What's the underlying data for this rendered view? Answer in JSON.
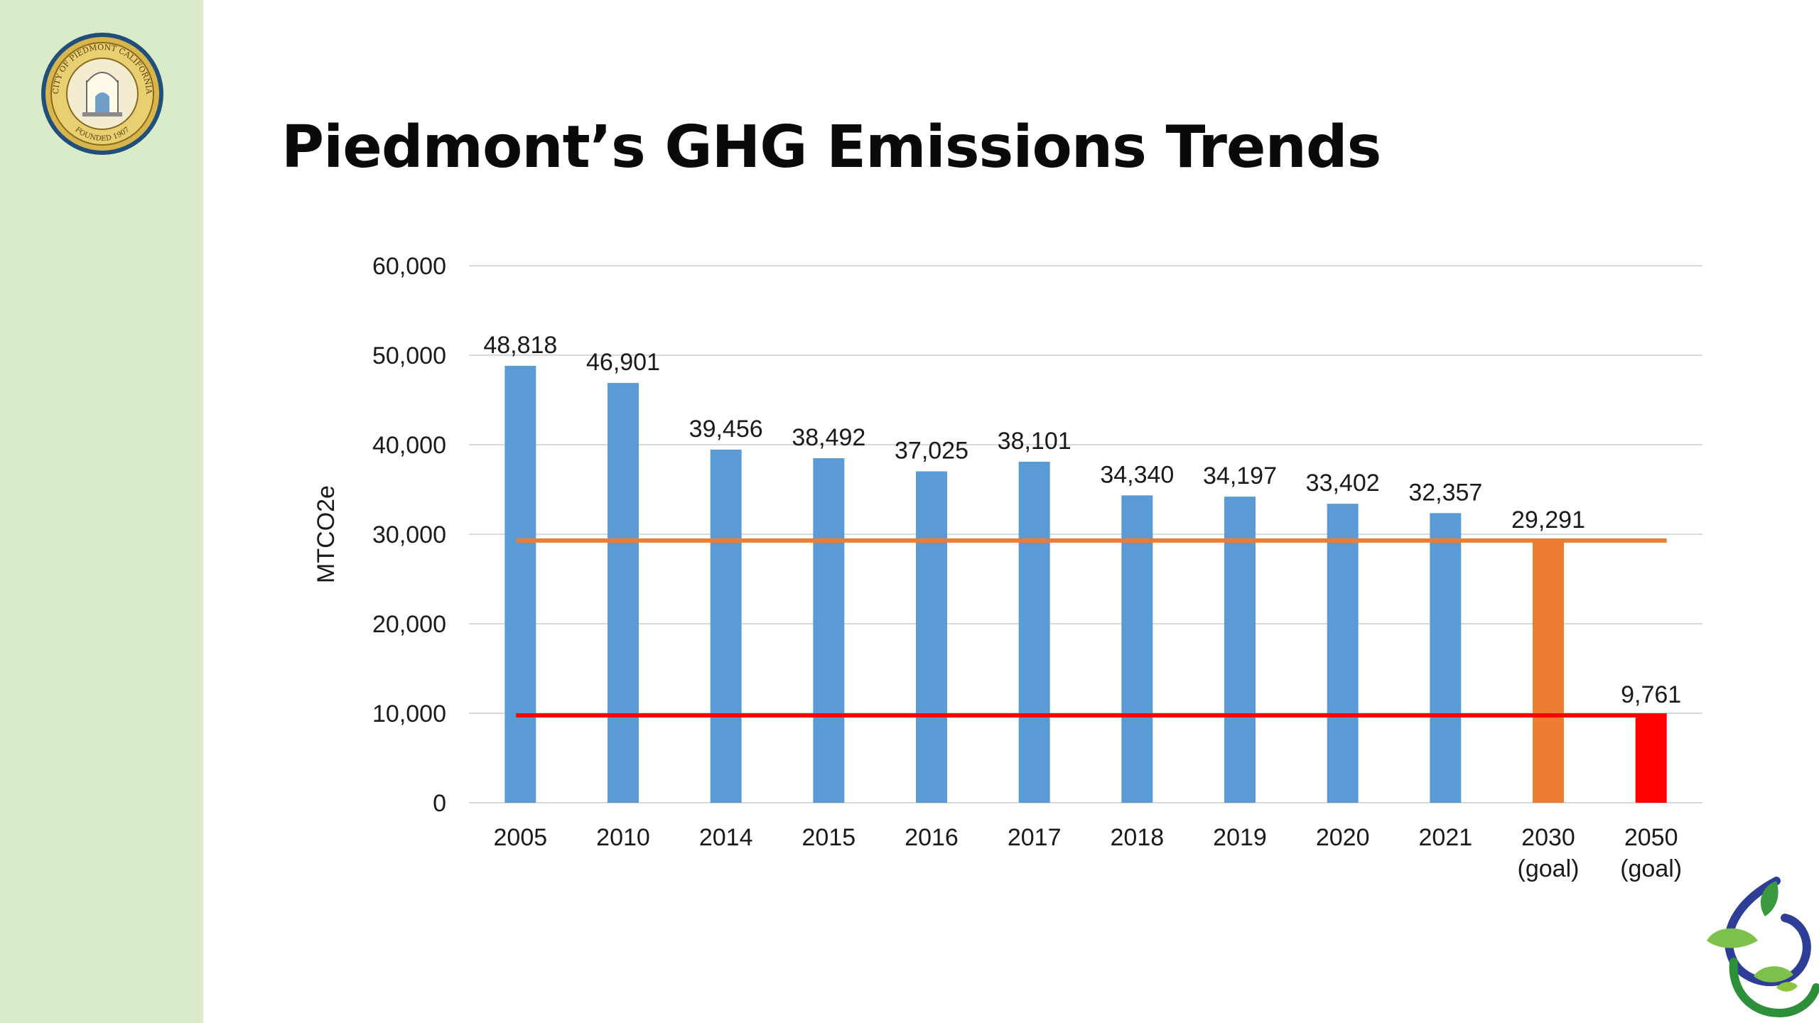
{
  "page": {
    "title": "Piedmont’s GHG Emissions Trends",
    "seal_text": [
      "CITY OF PIEDMONT CALIFORNIA",
      "FOUNDED 1907"
    ],
    "colors": {
      "sidebar": "#d9ebc8",
      "actual": "#5b9bd5",
      "goal_2030": "#ed7d31",
      "goal_2050": "#ff0000",
      "gridline": "#d9d9d9"
    },
    "icons": [
      "city-seal-icon",
      "sprout-logo-icon"
    ]
  },
  "chart_data": {
    "type": "bar",
    "title": "Piedmont’s GHG Emissions Trends",
    "ylabel": "MTCO2e",
    "xlabel": "",
    "ylim": [
      0,
      60000
    ],
    "yticks": [
      0,
      10000,
      20000,
      30000,
      40000,
      50000,
      60000
    ],
    "ytick_labels": [
      "0",
      "10,000",
      "20,000",
      "30,000",
      "40,000",
      "50,000",
      "60,000"
    ],
    "grid": true,
    "legend": "none",
    "categories": [
      "2005",
      "2010",
      "2014",
      "2015",
      "2016",
      "2017",
      "2018",
      "2019",
      "2020",
      "2021",
      "2030\n(goal)",
      "2050\n(goal)"
    ],
    "values": [
      48818,
      46901,
      39456,
      38492,
      37025,
      38101,
      34340,
      34197,
      33402,
      32357,
      29291,
      9761
    ],
    "data_labels": [
      "48,818",
      "46,901",
      "39,456",
      "38,492",
      "37,025",
      "38,101",
      "34,340",
      "34,197",
      "33,402",
      "32,357",
      "29,291",
      "9,761"
    ],
    "bar_colors": [
      "#5b9bd5",
      "#5b9bd5",
      "#5b9bd5",
      "#5b9bd5",
      "#5b9bd5",
      "#5b9bd5",
      "#5b9bd5",
      "#5b9bd5",
      "#5b9bd5",
      "#5b9bd5",
      "#ed7d31",
      "#ff0000"
    ],
    "reference_lines": [
      {
        "value": 29291,
        "color": "#ed7d31"
      },
      {
        "value": 9761,
        "color": "#ff0000"
      }
    ]
  }
}
